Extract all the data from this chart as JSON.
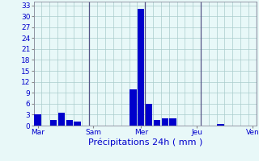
{
  "bar_positions": [
    0,
    1,
    2,
    3,
    4,
    5,
    6,
    7,
    8,
    9,
    10,
    11,
    12,
    13,
    14,
    15,
    16,
    17,
    18,
    19,
    20,
    21,
    22,
    23,
    24,
    25,
    26,
    27
  ],
  "bar_values": [
    3,
    0,
    1.5,
    3.5,
    1.5,
    1,
    0,
    0,
    0,
    0,
    0,
    0,
    10,
    32,
    6,
    1.5,
    2,
    2,
    0,
    0,
    0,
    0,
    0,
    0.5,
    0,
    0,
    0,
    0
  ],
  "bar_color": "#0000cc",
  "bg_color": "#e8f8f8",
  "grid_color": "#aacccc",
  "tick_label_color": "#0000cc",
  "xlabel": "Précipitations 24h ( mm )",
  "xlabel_color": "#0000cc",
  "yticks": [
    0,
    3,
    6,
    9,
    12,
    15,
    18,
    21,
    24,
    27,
    30,
    33
  ],
  "ylim": [
    0,
    34
  ],
  "xlim": [
    -0.5,
    27.5
  ],
  "xtick_positions": [
    0,
    7,
    13,
    20,
    27
  ],
  "xtick_labels": [
    "Mar",
    "Sam",
    "Mer",
    "Jeu",
    "Ven"
  ],
  "vline_positions": [
    6.5,
    13.5,
    20.5,
    27.5
  ],
  "vline_color": "#555588",
  "xlabel_fontsize": 8,
  "tick_fontsize": 6.5
}
